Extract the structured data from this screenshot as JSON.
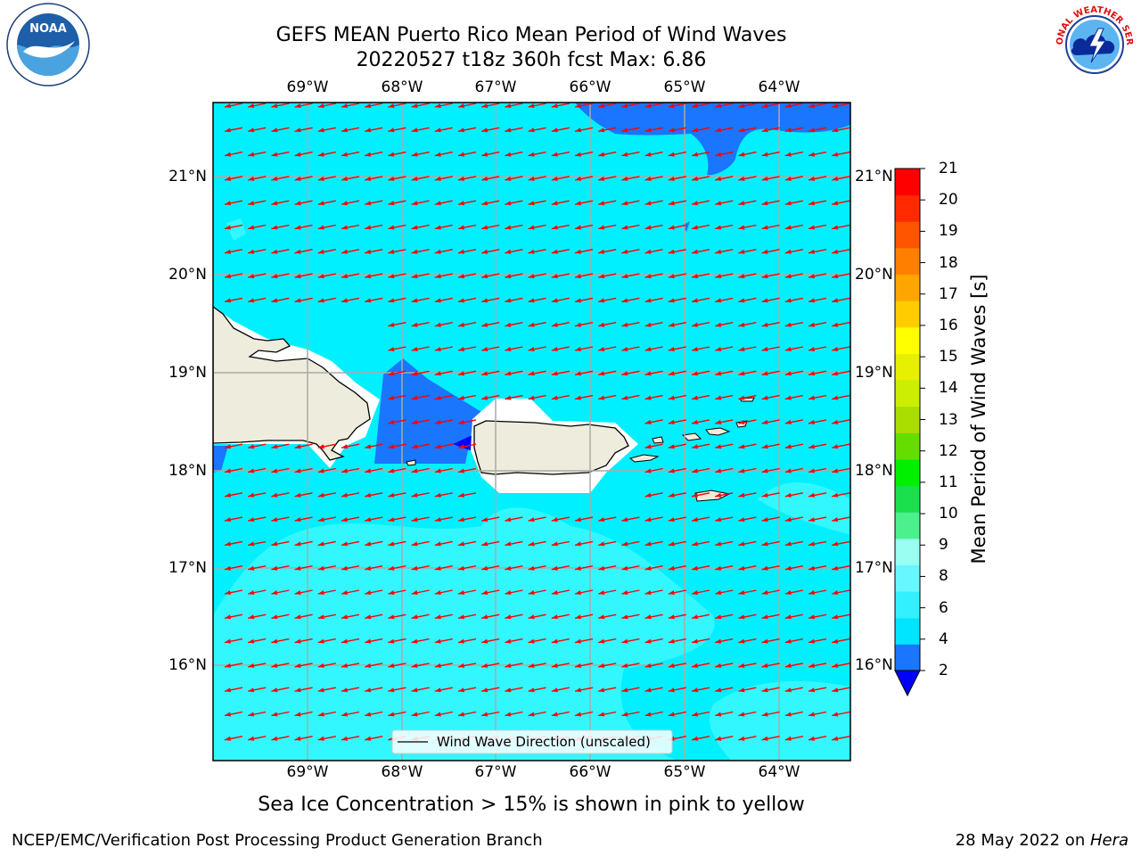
{
  "header": {
    "title_line1": "GEFS MEAN Puerto Rico Mean Period of Wind Waves",
    "title_line2": "20220527 t18z 360h fcst   Max: 6.86"
  },
  "logos": {
    "left": "NOAA",
    "left_ring": "NATIONAL OCEANIC AND ATMOSPHERIC ADMINISTRATION · U.S. DEPARTMENT OF COMMERCE",
    "right_ring": "NATIONAL WEATHER SERVICE"
  },
  "map": {
    "lon_labels": [
      "69°W",
      "68°W",
      "67°W",
      "66°W",
      "65°W",
      "64°W"
    ],
    "lat_labels": [
      "21°N",
      "20°N",
      "19°N",
      "18°N",
      "17°N",
      "16°N"
    ],
    "legend_label": "Wind Wave Direction (unscaled)",
    "arrow_color": "#ff0000",
    "land_color": "#eeecdc"
  },
  "colorbar": {
    "label": "Mean Period of Wind Waves [s]",
    "ticks": [
      "2",
      "4",
      "6",
      "8",
      "9",
      "10",
      "11",
      "12",
      "13",
      "14",
      "15",
      "16",
      "17",
      "18",
      "19",
      "20",
      "21"
    ],
    "colors": [
      "#1a75ff",
      "#00e5ff",
      "#33f0ff",
      "#66f7ff",
      "#99fff2",
      "#4cf08c",
      "#19e04c",
      "#00f000",
      "#66dd00",
      "#aadd00",
      "#ccee00",
      "#e6f000",
      "#ffff00",
      "#ffcc00",
      "#ffa500",
      "#ff8000",
      "#ff5500",
      "#ff2a00",
      "#ff0000"
    ],
    "under_color": "#0000ff"
  },
  "caption": "Sea Ice Concentration > 15% is shown in pink to yellow",
  "footer": {
    "left": "NCEP/EMC/Verification Post Processing Product Generation Branch",
    "right_date": "28 May 2022 on ",
    "right_host": "Hera"
  }
}
